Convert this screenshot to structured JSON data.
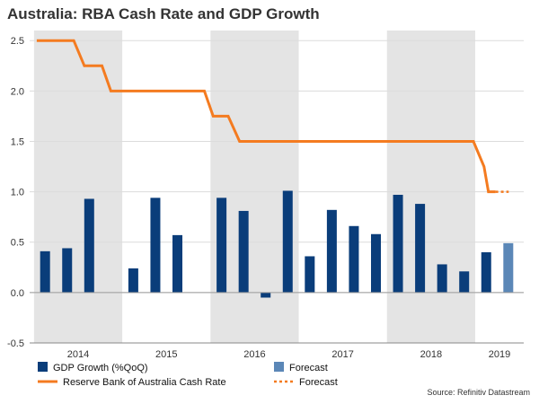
{
  "chart_data": {
    "type": "bar",
    "title": "Australia: RBA Cash Rate and GDP Growth",
    "source": "Source: Refinitiv Datastream",
    "xlabel": "",
    "ylabel": "",
    "ylim": [
      -0.5,
      2.6
    ],
    "grid": true,
    "x_tick_labels": [
      "2014",
      "2015",
      "2016",
      "2017",
      "2018",
      "2019"
    ],
    "y_ticks": [
      -0.5,
      0.0,
      0.5,
      1.0,
      1.5,
      2.0,
      2.5
    ],
    "y_tick_labels": [
      "-0.5",
      "0.0",
      "0.5",
      "1.0",
      "1.5",
      "2.0",
      "2.5"
    ],
    "shaded_years": [
      "2014",
      "2016",
      "2018"
    ],
    "categories": [
      "2014Q1",
      "2014Q2",
      "2014Q3",
      "2014Q4",
      "2015Q1",
      "2015Q2",
      "2015Q3",
      "2015Q4",
      "2016Q1",
      "2016Q2",
      "2016Q3",
      "2016Q4",
      "2017Q1",
      "2017Q2",
      "2017Q3",
      "2017Q4",
      "2018Q1",
      "2018Q2",
      "2018Q3",
      "2018Q4",
      "2019Q1",
      "2019Q2"
    ],
    "series": [
      {
        "name": "GDP Growth (%QoQ)",
        "kind": "bar",
        "color": "#0a3d7a",
        "values": [
          0.41,
          0.44,
          0.93,
          null,
          0.24,
          0.94,
          0.57,
          null,
          0.94,
          0.81,
          -0.05,
          1.01,
          0.36,
          0.82,
          0.66,
          0.58,
          0.97,
          0.88,
          0.28,
          0.21,
          0.4,
          null
        ]
      },
      {
        "name": "Forecast",
        "kind": "bar",
        "color": "#5b87b7",
        "values": [
          null,
          null,
          null,
          null,
          null,
          null,
          null,
          null,
          null,
          null,
          null,
          null,
          null,
          null,
          null,
          null,
          null,
          null,
          null,
          null,
          null,
          0.49
        ]
      },
      {
        "name": "Reserve Bank of Australia Cash Rate",
        "kind": "step-line",
        "color": "#f47b20",
        "points": [
          [
            2014.03,
            2.5
          ],
          [
            2014.45,
            2.5
          ],
          [
            2014.57,
            2.25
          ],
          [
            2014.77,
            2.25
          ],
          [
            2014.87,
            2.0
          ],
          [
            2015.93,
            2.0
          ],
          [
            2016.03,
            1.75
          ],
          [
            2016.2,
            1.75
          ],
          [
            2016.33,
            1.5
          ],
          [
            2018.98,
            1.5
          ],
          [
            2019.1,
            1.25
          ],
          [
            2019.15,
            1.0
          ],
          [
            2019.23,
            1.0
          ]
        ]
      },
      {
        "name": "Forecast",
        "kind": "line-dotted",
        "color": "#f47b20",
        "points": [
          [
            2019.23,
            1.0
          ],
          [
            2019.38,
            1.0
          ]
        ]
      }
    ],
    "legend": [
      {
        "label": "GDP Growth (%QoQ)",
        "swatch": "bar",
        "color": "#0a3d7a"
      },
      {
        "label": "Forecast",
        "swatch": "bar",
        "color": "#5b87b7"
      },
      {
        "label": "Reserve Bank of Australia Cash Rate",
        "swatch": "line",
        "color": "#f47b20"
      },
      {
        "label": "Forecast",
        "swatch": "dotted",
        "color": "#f47b20"
      }
    ]
  }
}
